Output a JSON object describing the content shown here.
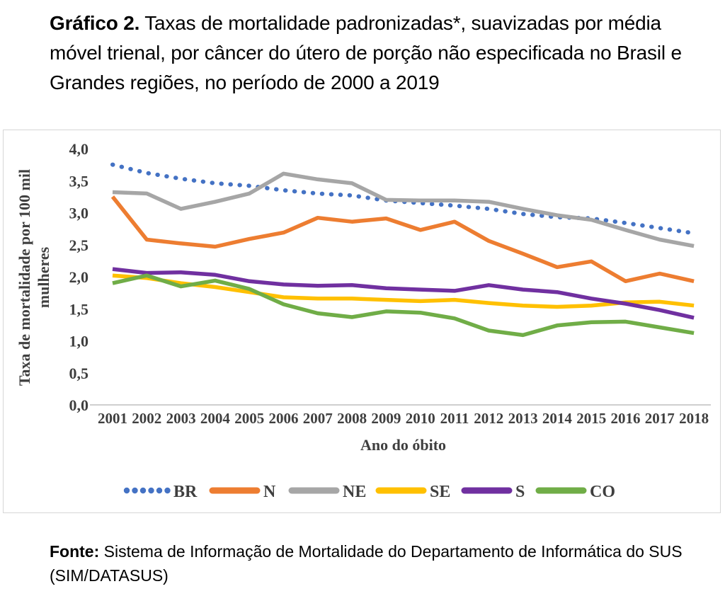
{
  "title": {
    "bold": "Gráfico 2.",
    "rest": " Taxas de mortalidade padronizadas*, suavizadas por média móvel trienal, por câncer do útero de porção não especificada no Brasil e Grandes regiões, no período de 2000 a 2019"
  },
  "footer": {
    "bold": "Fonte:",
    "rest": " Sistema de Informação de Mortalidade do Departamento de Informática do SUS (SIM/DATASUS)"
  },
  "chart_data": {
    "type": "line",
    "x": [
      2001,
      2002,
      2003,
      2004,
      2005,
      2006,
      2007,
      2008,
      2009,
      2010,
      2011,
      2012,
      2013,
      2014,
      2015,
      2016,
      2017,
      2018
    ],
    "xlabel": "Ano do óbito",
    "ylabel": "Taxa de mortalidade por 100 mil mulheres",
    "ylabel_lines": [
      "Taxa de mortalidade por 100 mil",
      "mulheres"
    ],
    "ylim": [
      0.0,
      4.0
    ],
    "ytick_step": 0.5,
    "ytick_labels": [
      "4,0",
      "3,5",
      "3,0",
      "2,5",
      "2,0",
      "1,5",
      "1,0",
      "0,5",
      "0,0"
    ],
    "grid": false,
    "legend_position": "bottom",
    "series": [
      {
        "name": "BR",
        "style": "dotted",
        "color": "#4472C4",
        "values": [
          3.75,
          3.62,
          3.53,
          3.46,
          3.42,
          3.35,
          3.3,
          3.27,
          3.19,
          3.15,
          3.11,
          3.06,
          2.98,
          2.93,
          2.91,
          2.84,
          2.76,
          2.68
        ]
      },
      {
        "name": "N",
        "style": "solid",
        "color": "#ED7D31",
        "values": [
          3.25,
          2.58,
          2.52,
          2.47,
          2.59,
          2.69,
          2.92,
          2.86,
          2.91,
          2.73,
          2.86,
          2.56,
          2.36,
          2.15,
          2.24,
          1.93,
          2.05,
          1.93
        ]
      },
      {
        "name": "NE",
        "style": "solid",
        "color": "#A6A6A6",
        "values": [
          3.32,
          3.3,
          3.06,
          3.17,
          3.3,
          3.61,
          3.52,
          3.46,
          3.2,
          3.19,
          3.19,
          3.17,
          3.06,
          2.96,
          2.89,
          2.73,
          2.58,
          2.48
        ]
      },
      {
        "name": "SE",
        "style": "solid",
        "color": "#FFC000",
        "values": [
          2.02,
          1.98,
          1.9,
          1.84,
          1.76,
          1.68,
          1.66,
          1.66,
          1.64,
          1.62,
          1.64,
          1.59,
          1.55,
          1.53,
          1.55,
          1.6,
          1.61,
          1.55
        ]
      },
      {
        "name": "S",
        "style": "solid",
        "color": "#7030A0",
        "values": [
          2.12,
          2.06,
          2.07,
          2.03,
          1.93,
          1.88,
          1.86,
          1.87,
          1.82,
          1.8,
          1.78,
          1.87,
          1.8,
          1.76,
          1.66,
          1.58,
          1.48,
          1.36
        ]
      },
      {
        "name": "CO",
        "style": "solid",
        "color": "#70AD47",
        "values": [
          1.9,
          2.02,
          1.85,
          1.94,
          1.81,
          1.57,
          1.43,
          1.37,
          1.46,
          1.44,
          1.35,
          1.16,
          1.09,
          1.24,
          1.29,
          1.3,
          1.21,
          1.12
        ]
      }
    ]
  },
  "colors": {
    "axis_text": "#3f3f3f",
    "axis_line": "#bfbfbf",
    "frame_border": "#d6d6d6"
  }
}
